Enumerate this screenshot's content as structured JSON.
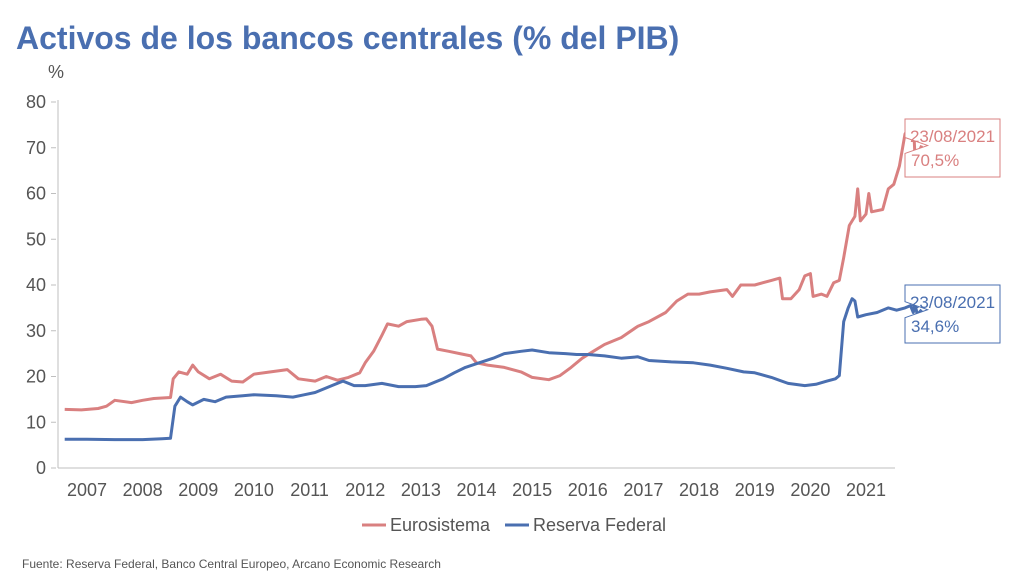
{
  "title": "Activos de los bancos centrales (% del PIB)",
  "source": "Fuente: Reserva Federal, Banco Central Europeo, Arcano Economic Research",
  "chart_data": {
    "type": "line",
    "title": "Activos de los bancos centrales (% del PIB)",
    "ylabel": "%",
    "xlabel": "",
    "ylim": [
      0,
      80
    ],
    "xlim": [
      2006.6,
      2021.6
    ],
    "yticks": [
      0,
      10,
      20,
      30,
      40,
      50,
      60,
      70,
      80
    ],
    "xticks": [
      "2007",
      "2008",
      "2009",
      "2010",
      "2011",
      "2012",
      "2013",
      "2014",
      "2015",
      "2016",
      "2017",
      "2018",
      "2019",
      "2020",
      "2021"
    ],
    "grid": false,
    "legend": "bottom",
    "series": [
      {
        "name": "Eurosistema",
        "color": "#d98080",
        "points": [
          [
            2006.6,
            12.8
          ],
          [
            2006.9,
            12.7
          ],
          [
            2007.2,
            13.0
          ],
          [
            2007.35,
            13.5
          ],
          [
            2007.5,
            14.8
          ],
          [
            2007.8,
            14.3
          ],
          [
            2008.0,
            14.8
          ],
          [
            2008.2,
            15.2
          ],
          [
            2008.5,
            15.4
          ],
          [
            2008.55,
            19.5
          ],
          [
            2008.65,
            21.0
          ],
          [
            2008.8,
            20.5
          ],
          [
            2008.9,
            22.5
          ],
          [
            2009.0,
            21.0
          ],
          [
            2009.2,
            19.5
          ],
          [
            2009.4,
            20.5
          ],
          [
            2009.6,
            19.0
          ],
          [
            2009.8,
            18.8
          ],
          [
            2010.0,
            20.5
          ],
          [
            2010.3,
            21.0
          ],
          [
            2010.6,
            21.5
          ],
          [
            2010.8,
            19.5
          ],
          [
            2011.1,
            19.0
          ],
          [
            2011.3,
            20.0
          ],
          [
            2011.5,
            19.2
          ],
          [
            2011.7,
            19.8
          ],
          [
            2011.9,
            20.8
          ],
          [
            2012.0,
            23.0
          ],
          [
            2012.15,
            25.5
          ],
          [
            2012.3,
            29.0
          ],
          [
            2012.4,
            31.5
          ],
          [
            2012.6,
            31.0
          ],
          [
            2012.75,
            32.0
          ],
          [
            2013.0,
            32.5
          ],
          [
            2013.1,
            32.6
          ],
          [
            2013.2,
            31.0
          ],
          [
            2013.3,
            26.0
          ],
          [
            2013.5,
            25.5
          ],
          [
            2013.7,
            25.0
          ],
          [
            2013.9,
            24.5
          ],
          [
            2014.0,
            23.0
          ],
          [
            2014.2,
            22.5
          ],
          [
            2014.5,
            22.0
          ],
          [
            2014.8,
            21.0
          ],
          [
            2015.0,
            19.8
          ],
          [
            2015.3,
            19.3
          ],
          [
            2015.5,
            20.2
          ],
          [
            2015.7,
            22.0
          ],
          [
            2015.9,
            24.0
          ],
          [
            2016.1,
            25.5
          ],
          [
            2016.3,
            27.0
          ],
          [
            2016.6,
            28.5
          ],
          [
            2016.9,
            31.0
          ],
          [
            2017.1,
            32.0
          ],
          [
            2017.4,
            34.0
          ],
          [
            2017.6,
            36.5
          ],
          [
            2017.8,
            38.0
          ],
          [
            2018.0,
            38.0
          ],
          [
            2018.2,
            38.5
          ],
          [
            2018.5,
            39.0
          ],
          [
            2018.6,
            37.5
          ],
          [
            2018.75,
            40.0
          ],
          [
            2019.0,
            40.0
          ],
          [
            2019.3,
            41.0
          ],
          [
            2019.45,
            41.5
          ],
          [
            2019.5,
            37.0
          ],
          [
            2019.65,
            37.0
          ],
          [
            2019.8,
            39.0
          ],
          [
            2019.9,
            42.0
          ],
          [
            2020.0,
            42.5
          ],
          [
            2020.05,
            37.5
          ],
          [
            2020.2,
            38.0
          ],
          [
            2020.3,
            37.5
          ],
          [
            2020.42,
            40.5
          ],
          [
            2020.52,
            41.0
          ],
          [
            2020.6,
            46.0
          ],
          [
            2020.7,
            53.0
          ],
          [
            2020.8,
            55.0
          ],
          [
            2020.85,
            61.0
          ],
          [
            2020.9,
            54.0
          ],
          [
            2021.0,
            55.5
          ],
          [
            2021.05,
            60.0
          ],
          [
            2021.1,
            56.0
          ],
          [
            2021.3,
            56.5
          ],
          [
            2021.4,
            61.0
          ],
          [
            2021.5,
            62.0
          ],
          [
            2021.6,
            66.0
          ],
          [
            2021.7,
            73.0
          ],
          [
            2021.85,
            76.0
          ],
          [
            2021.88,
            68.0
          ],
          [
            2021.95,
            69.0
          ],
          [
            2022.0,
            70.5
          ]
        ]
      },
      {
        "name": "Reserva Federal",
        "color": "#4a6fb0",
        "points": [
          [
            2006.6,
            6.3
          ],
          [
            2007.0,
            6.3
          ],
          [
            2007.5,
            6.2
          ],
          [
            2008.0,
            6.2
          ],
          [
            2008.35,
            6.4
          ],
          [
            2008.5,
            6.5
          ],
          [
            2008.58,
            13.5
          ],
          [
            2008.68,
            15.5
          ],
          [
            2008.8,
            14.5
          ],
          [
            2008.9,
            13.8
          ],
          [
            2009.1,
            15.0
          ],
          [
            2009.3,
            14.5
          ],
          [
            2009.5,
            15.5
          ],
          [
            2009.8,
            15.8
          ],
          [
            2010.0,
            16.0
          ],
          [
            2010.4,
            15.8
          ],
          [
            2010.7,
            15.5
          ],
          [
            2010.9,
            16.0
          ],
          [
            2011.1,
            16.5
          ],
          [
            2011.4,
            18.0
          ],
          [
            2011.6,
            19.0
          ],
          [
            2011.8,
            18.0
          ],
          [
            2012.0,
            18.0
          ],
          [
            2012.3,
            18.5
          ],
          [
            2012.6,
            17.8
          ],
          [
            2012.9,
            17.8
          ],
          [
            2013.1,
            18.0
          ],
          [
            2013.4,
            19.5
          ],
          [
            2013.6,
            20.8
          ],
          [
            2013.8,
            22.0
          ],
          [
            2014.0,
            22.8
          ],
          [
            2014.3,
            24.0
          ],
          [
            2014.5,
            25.0
          ],
          [
            2014.8,
            25.5
          ],
          [
            2015.0,
            25.8
          ],
          [
            2015.3,
            25.2
          ],
          [
            2015.6,
            25.0
          ],
          [
            2015.8,
            24.8
          ],
          [
            2016.0,
            24.8
          ],
          [
            2016.3,
            24.5
          ],
          [
            2016.6,
            24.0
          ],
          [
            2016.9,
            24.3
          ],
          [
            2017.1,
            23.5
          ],
          [
            2017.5,
            23.2
          ],
          [
            2017.9,
            23.0
          ],
          [
            2018.2,
            22.5
          ],
          [
            2018.5,
            21.8
          ],
          [
            2018.8,
            21.0
          ],
          [
            2019.0,
            20.8
          ],
          [
            2019.3,
            19.8
          ],
          [
            2019.6,
            18.5
          ],
          [
            2019.9,
            18.0
          ],
          [
            2020.1,
            18.3
          ],
          [
            2020.3,
            19.0
          ],
          [
            2020.45,
            19.5
          ],
          [
            2020.52,
            20.2
          ],
          [
            2020.6,
            32.0
          ],
          [
            2020.68,
            35.0
          ],
          [
            2020.75,
            37.0
          ],
          [
            2020.8,
            36.5
          ],
          [
            2020.85,
            33.0
          ],
          [
            2021.0,
            33.5
          ],
          [
            2021.2,
            34.0
          ],
          [
            2021.4,
            35.0
          ],
          [
            2021.55,
            34.5
          ],
          [
            2021.7,
            35.0
          ],
          [
            2021.8,
            35.5
          ],
          [
            2021.85,
            34.0
          ],
          [
            2021.88,
            36.0
          ],
          [
            2021.92,
            33.5
          ],
          [
            2022.0,
            34.6
          ]
        ]
      }
    ],
    "annotations": [
      {
        "series": "Eurosistema",
        "date": "23/08/2021",
        "value": "70,5%",
        "color": "#d98080"
      },
      {
        "series": "Reserva Federal",
        "date": "23/08/2021",
        "value": "34,6%",
        "color": "#4a6fb0"
      }
    ]
  }
}
